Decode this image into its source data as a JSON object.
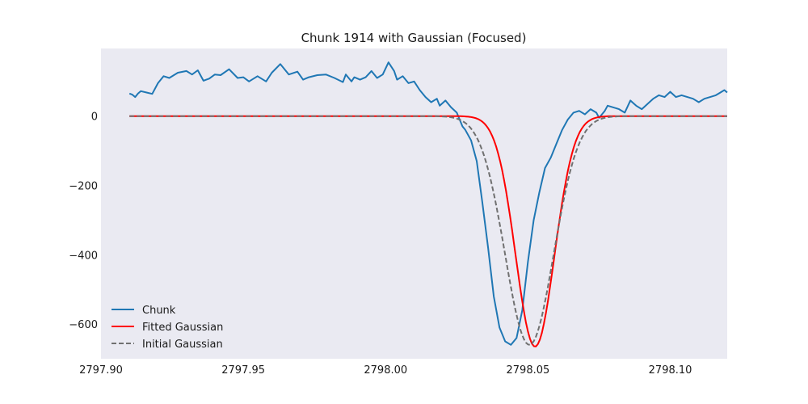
{
  "chart_data": {
    "type": "line",
    "title": "Chunk 1914 with Gaussian (Focused)",
    "xlabel": "",
    "ylabel": "",
    "xlim": [
      2797.9,
      2798.12
    ],
    "ylim": [
      -700,
      195
    ],
    "x_ticks": [
      {
        "value": 2797.9,
        "label": "2797.90"
      },
      {
        "value": 2797.95,
        "label": "2797.95"
      },
      {
        "value": 2798.0,
        "label": "2798.00"
      },
      {
        "value": 2798.05,
        "label": "2798.05"
      },
      {
        "value": 2798.1,
        "label": "2798.10"
      }
    ],
    "y_ticks": [
      {
        "value": 0,
        "label": "0"
      },
      {
        "value": -200,
        "label": "−200"
      },
      {
        "value": -400,
        "label": "−400"
      },
      {
        "value": -600,
        "label": "−600"
      }
    ],
    "grid": false,
    "legend_position": "lower-left",
    "colors": {
      "plot_background": "#eaeaf2",
      "chunk": "#1f77b4",
      "fitted": "#ff0000",
      "initial": "#707070"
    },
    "series": [
      {
        "name": "Chunk",
        "style": "solid",
        "x": [
          2797.91,
          2797.911,
          2797.912,
          2797.913,
          2797.914,
          2797.916,
          2797.918,
          2797.92,
          2797.922,
          2797.924,
          2797.927,
          2797.93,
          2797.932,
          2797.934,
          2797.936,
          2797.938,
          2797.94,
          2797.942,
          2797.945,
          2797.948,
          2797.95,
          2797.952,
          2797.955,
          2797.958,
          2797.96,
          2797.963,
          2797.966,
          2797.969,
          2797.971,
          2797.973,
          2797.976,
          2797.979,
          2797.982,
          2797.985,
          2797.986,
          2797.988,
          2797.989,
          2797.991,
          2797.993,
          2797.995,
          2797.997,
          2797.999,
          2798.001,
          2798.003,
          2798.004,
          2798.006,
          2798.008,
          2798.01,
          2798.012,
          2798.014,
          2798.016,
          2798.018,
          2798.019,
          2798.021,
          2798.023,
          2798.025,
          2798.027,
          2798.028,
          2798.03,
          2798.032,
          2798.034,
          2798.036,
          2798.038,
          2798.04,
          2798.042,
          2798.044,
          2798.046,
          2798.048,
          2798.05,
          2798.052,
          2798.054,
          2798.056,
          2798.058,
          2798.06,
          2798.062,
          2798.064,
          2798.066,
          2798.068,
          2798.07,
          2798.072,
          2798.074,
          2798.075,
          2798.077,
          2798.078,
          2798.08,
          2798.082,
          2798.084,
          2798.086,
          2798.088,
          2798.09,
          2798.092,
          2798.094,
          2798.096,
          2798.098,
          2798.1,
          2798.102,
          2798.104,
          2798.106,
          2798.108,
          2798.11,
          2798.112,
          2798.114,
          2798.116,
          2798.118,
          2798.119,
          2798.12
        ],
        "y": [
          65,
          62,
          55,
          65,
          72,
          68,
          64,
          95,
          115,
          110,
          125,
          130,
          120,
          132,
          102,
          108,
          120,
          118,
          135,
          110,
          112,
          100,
          115,
          100,
          125,
          150,
          120,
          128,
          105,
          112,
          118,
          120,
          110,
          98,
          120,
          100,
          112,
          105,
          112,
          130,
          110,
          120,
          155,
          130,
          105,
          115,
          95,
          100,
          75,
          55,
          40,
          50,
          30,
          45,
          25,
          10,
          -30,
          -40,
          -70,
          -130,
          -250,
          -380,
          -520,
          -610,
          -650,
          -660,
          -640,
          -560,
          -420,
          -300,
          -220,
          -150,
          -120,
          -80,
          -40,
          -10,
          10,
          15,
          5,
          20,
          10,
          -5,
          15,
          30,
          25,
          20,
          10,
          45,
          30,
          20,
          35,
          50,
          60,
          55,
          70,
          55,
          60,
          55,
          50,
          40,
          50,
          55,
          60,
          70,
          75,
          68
        ]
      },
      {
        "name": "Fitted Gaussian",
        "style": "solid",
        "gaussian": {
          "amplitude": -665,
          "center": 2798.0525,
          "sigma": 0.0068
        },
        "x_range": [
          2797.91,
          2798.12
        ]
      },
      {
        "name": "Initial Gaussian",
        "style": "dashed",
        "gaussian": {
          "amplitude": -660,
          "center": 2798.0505,
          "sigma": 0.0085
        },
        "x_range": [
          2797.91,
          2798.12
        ]
      }
    ]
  }
}
